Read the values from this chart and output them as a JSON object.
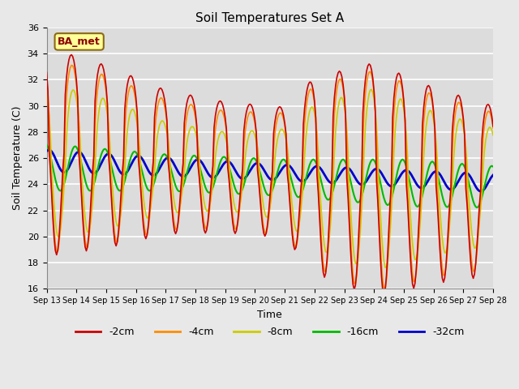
{
  "title": "Soil Temperatures Set A",
  "xlabel": "Time",
  "ylabel": "Soil Temperature (C)",
  "ylim": [
    16,
    36
  ],
  "annotation": "BA_met",
  "xtick_labels": [
    "Sep 13",
    "Sep 14",
    "Sep 15",
    "Sep 16",
    "Sep 17",
    "Sep 18",
    "Sep 19",
    "Sep 20",
    "Sep 21",
    "Sep 22",
    "Sep 23",
    "Sep 24",
    "Sep 25",
    "Sep 26",
    "Sep 27",
    "Sep 28"
  ],
  "bg_color": "#DCDCDC",
  "grid_color": "#FFFFFF",
  "fig_bg": "#E8E8E8",
  "legend_colors": [
    "#CC0000",
    "#FF8C00",
    "#CCCC00",
    "#00BB00",
    "#0000CC"
  ],
  "legend_labels": [
    "-2cm",
    "-4cm",
    "-8cm",
    "-16cm",
    "-32cm"
  ],
  "series_colors": {
    "-2cm": "#CC0000",
    "-4cm": "#FF8C00",
    "-8cm": "#CCCC00",
    "-16cm": "#00BB00",
    "-32cm": "#0000CC"
  },
  "series_lw": {
    "-2cm": 1.2,
    "-4cm": 1.2,
    "-8cm": 1.2,
    "-16cm": 1.5,
    "-32cm": 2.0
  }
}
